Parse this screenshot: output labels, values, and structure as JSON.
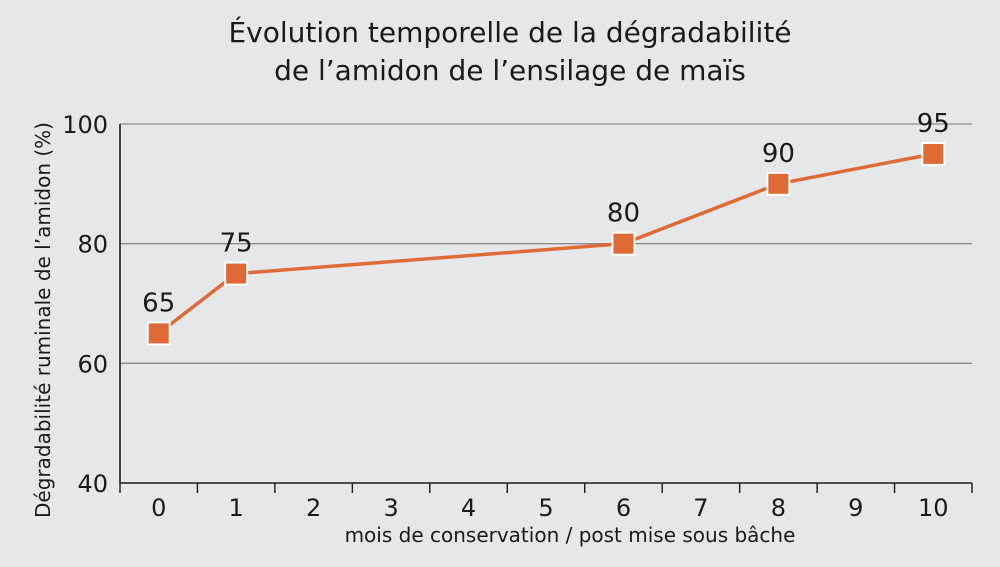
{
  "chart_data": {
    "type": "line",
    "title": [
      "Évolution temporelle de la dégradabilité",
      "de l’amidon de l’ensilage de maïs"
    ],
    "xlabel": "mois de conservation / post mise sous bâche",
    "ylabel": "Dégradabilité ruminale de l’amidon (%)",
    "x_ticks": [
      0,
      1,
      2,
      3,
      4,
      5,
      6,
      7,
      8,
      9,
      10
    ],
    "y_ticks": [
      40,
      60,
      80,
      100
    ],
    "xlim": [
      -0.5,
      10.5
    ],
    "ylim": [
      40,
      100
    ],
    "grid": "horizontal",
    "series": [
      {
        "x": [
          0,
          1,
          6,
          8,
          10
        ],
        "y": [
          65,
          75,
          80,
          90,
          95
        ],
        "labels": [
          "65",
          "75",
          "80",
          "90",
          "95"
        ],
        "color": "#e06a35",
        "marker": "square"
      }
    ]
  }
}
